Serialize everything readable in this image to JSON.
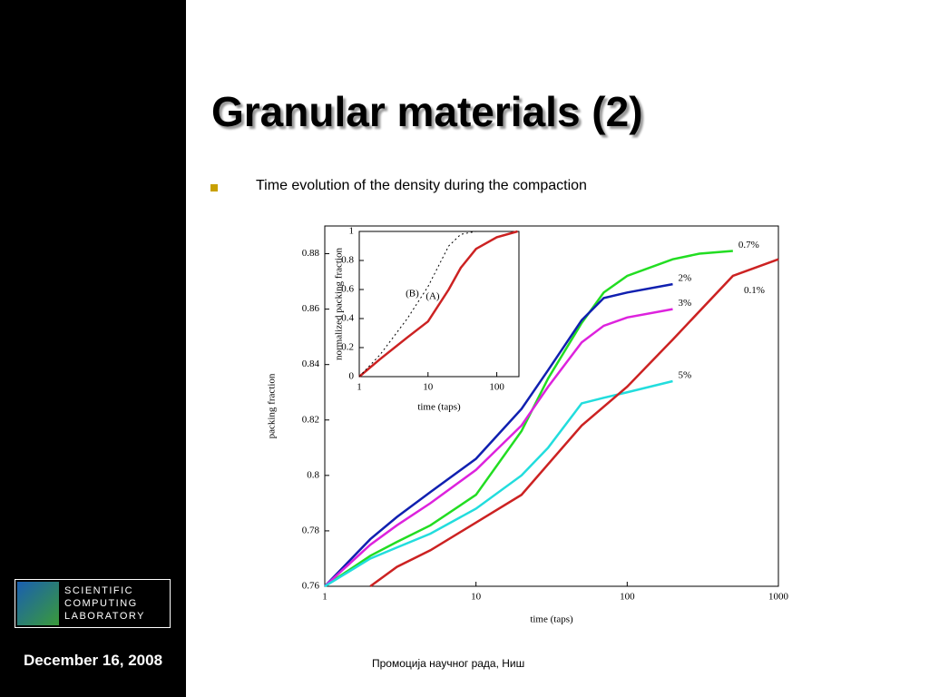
{
  "slide": {
    "title": "Granular materials (2)",
    "bullet": "Time evolution of the density during the compaction",
    "logo": [
      "SCIENTIFIC",
      "COMPUTING",
      "LABORATORY"
    ],
    "date": "December 16, 2008",
    "footer": "Промоција научног рада, Ниш"
  },
  "chart_data": [
    {
      "type": "line",
      "xlabel": "time (taps)",
      "ylabel": "packing fraction",
      "xscale": "log",
      "xlim": [
        1,
        1000
      ],
      "xticks": [
        1,
        10,
        100,
        1000
      ],
      "ylim": [
        0.76,
        0.89
      ],
      "yticks": [
        0.76,
        0.78,
        0.8,
        0.82,
        0.84,
        0.86,
        0.88
      ],
      "series": [
        {
          "name": "0.7%",
          "color": "#22dd22",
          "x": [
            1,
            2,
            3,
            5,
            10,
            20,
            30,
            50,
            70,
            100,
            200,
            300,
            500
          ],
          "values": [
            0.76,
            0.771,
            0.776,
            0.782,
            0.793,
            0.816,
            0.835,
            0.855,
            0.866,
            0.872,
            0.878,
            0.88,
            0.881
          ]
        },
        {
          "name": "2%",
          "color": "#1020b0",
          "x": [
            1,
            2,
            3,
            5,
            10,
            20,
            30,
            50,
            70,
            100,
            200
          ],
          "values": [
            0.76,
            0.777,
            0.785,
            0.794,
            0.806,
            0.824,
            0.838,
            0.856,
            0.864,
            0.866,
            0.869
          ]
        },
        {
          "name": "3%",
          "color": "#dd22dd",
          "x": [
            1,
            2,
            3,
            5,
            10,
            20,
            30,
            50,
            70,
            100,
            200
          ],
          "values": [
            0.76,
            0.775,
            0.782,
            0.79,
            0.802,
            0.818,
            0.832,
            0.848,
            0.854,
            0.857,
            0.86
          ]
        },
        {
          "name": "5%",
          "color": "#22dddd",
          "x": [
            1,
            2,
            3,
            5,
            10,
            20,
            30,
            50,
            70,
            100,
            200
          ],
          "values": [
            0.76,
            0.77,
            0.774,
            0.779,
            0.788,
            0.8,
            0.81,
            0.826,
            0.828,
            0.83,
            0.834
          ]
        },
        {
          "name": "0.1%",
          "color": "#cc2222",
          "x": [
            2,
            3,
            5,
            10,
            20,
            50,
            100,
            200,
            500,
            1000
          ],
          "values": [
            0.76,
            0.767,
            0.773,
            0.783,
            0.793,
            0.818,
            0.832,
            0.849,
            0.872,
            0.878
          ]
        }
      ]
    },
    {
      "type": "line",
      "xlabel": "time (taps)",
      "ylabel": "normalized packing fraction",
      "xscale": "log",
      "xlim": [
        1,
        210
      ],
      "xticks": [
        1,
        10,
        100
      ],
      "ylim": [
        0,
        1
      ],
      "yticks": [
        0,
        0.2,
        0.4,
        0.6,
        0.8,
        1
      ],
      "series": [
        {
          "name": "(A)",
          "color": "#cc2222",
          "x": [
            1,
            2,
            5,
            10,
            20,
            30,
            50,
            100,
            200
          ],
          "values": [
            0,
            0.12,
            0.27,
            0.38,
            0.6,
            0.75,
            0.88,
            0.96,
            1.0
          ]
        },
        {
          "name": "(B)",
          "color": "#000000",
          "dash": true,
          "x": [
            1,
            2,
            5,
            10,
            20,
            30,
            50
          ],
          "values": [
            0,
            0.15,
            0.4,
            0.62,
            0.9,
            0.98,
            1.0
          ]
        }
      ]
    }
  ]
}
